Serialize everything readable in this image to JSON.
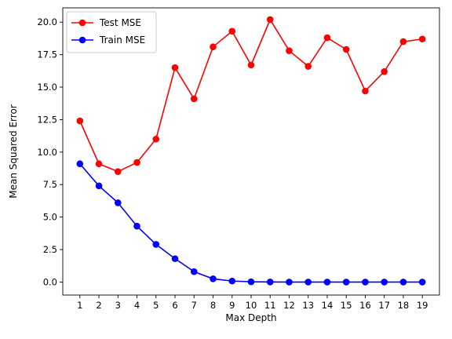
{
  "chart_data": {
    "type": "line",
    "xlabel": "Max Depth",
    "ylabel": "Mean Squared Error",
    "x": [
      1,
      2,
      3,
      4,
      5,
      6,
      7,
      8,
      9,
      10,
      11,
      12,
      13,
      14,
      15,
      16,
      17,
      18,
      19
    ],
    "xlim": [
      0.1,
      19.9
    ],
    "ylim": [
      -1.0,
      21.1
    ],
    "yticks": [
      0.0,
      2.5,
      5.0,
      7.5,
      10.0,
      12.5,
      15.0,
      17.5,
      20.0
    ],
    "ytick_labels": [
      "0.0",
      "2.5",
      "5.0",
      "7.5",
      "10.0",
      "12.5",
      "15.0",
      "17.5",
      "20.0"
    ],
    "grid": false,
    "legend_position": "top-left",
    "series": [
      {
        "name": "Test MSE",
        "color": "#ff0000",
        "marker": "circle",
        "values": [
          12.4,
          9.1,
          8.5,
          9.2,
          11.0,
          16.5,
          14.1,
          18.1,
          19.3,
          16.7,
          20.2,
          17.8,
          16.6,
          18.8,
          17.9,
          14.7,
          16.2,
          18.5,
          18.7
        ]
      },
      {
        "name": "Train MSE",
        "color": "#0000ff",
        "marker": "circle",
        "values": [
          9.1,
          7.4,
          6.1,
          4.3,
          2.9,
          1.8,
          0.8,
          0.25,
          0.08,
          0.02,
          0.01,
          0.0,
          0.0,
          0.0,
          0.0,
          0.0,
          0.0,
          0.0,
          0.0
        ]
      }
    ]
  }
}
